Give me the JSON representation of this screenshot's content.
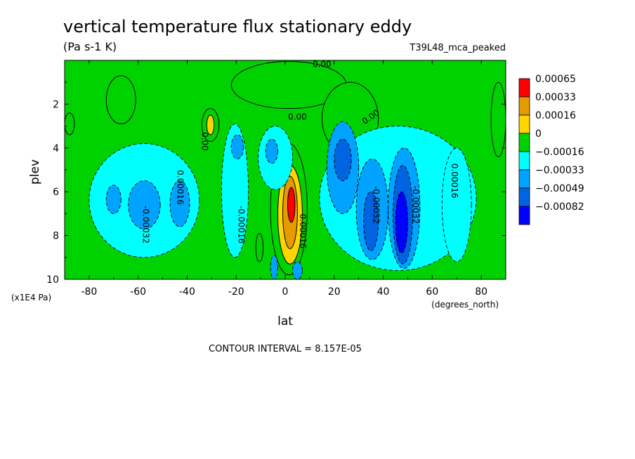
{
  "chart_data": {
    "type": "heatmap",
    "title": "vertical temperature flux stationary eddy",
    "units": "(Pa s-1 K)",
    "dataset_label": "T39L48_mca_peaked",
    "xlabel": "lat",
    "x_units": "(degrees_north)",
    "ylabel": "plev",
    "y_units": "(x1E4 Pa)",
    "xlim": [
      -90,
      90
    ],
    "ylim": [
      10,
      0
    ],
    "x_ticks": [
      -80,
      -60,
      -40,
      -20,
      0,
      20,
      40,
      60,
      80
    ],
    "y_ticks": [
      2,
      4,
      6,
      8,
      10
    ],
    "contour_interval_text": "CONTOUR INTERVAL = 8.157E-05",
    "legend": {
      "levels": [
        "0.00065",
        "0.00033",
        "0.00016",
        "0",
        "−0.00016",
        "−0.00033",
        "−0.00049",
        "−0.00082"
      ],
      "colors": [
        "#ff0000",
        "#e49b00",
        "#ffd500",
        "#00d200",
        "#00ffff",
        "#00a3ff",
        "#0064e0",
        "#0000ff"
      ]
    },
    "background_color": "#00d200",
    "contour_labels": [
      {
        "text": "0.00",
        "lat": 15,
        "plev": 0.2,
        "rot": 0
      },
      {
        "text": "0.00",
        "lat": 5,
        "plev": 2.6,
        "rot": 0
      },
      {
        "text": "0.00",
        "lat": 35,
        "plev": 2.6,
        "rot": -35
      },
      {
        "text": "0.00",
        "lat": -33,
        "plev": 3.7,
        "rot": 90
      },
      {
        "text": "0.00016",
        "lat": -43,
        "plev": 5.8,
        "rot": 90
      },
      {
        "text": "-0.00032",
        "lat": -57,
        "plev": 7.5,
        "rot": 90
      },
      {
        "text": "-0.00016",
        "lat": -18,
        "plev": 7.5,
        "rot": 90
      },
      {
        "text": "0.00016",
        "lat": 7,
        "plev": 7.8,
        "rot": 90
      },
      {
        "text": "-0.00032",
        "lat": 37,
        "plev": 6.6,
        "rot": 90
      },
      {
        "text": "-0.00032",
        "lat": 53,
        "plev": 6.6,
        "rot": 90
      },
      {
        "text": "0.00016",
        "lat": 69,
        "plev": 5.5,
        "rot": 90
      }
    ],
    "features": [
      {
        "name": "yellow-top-center",
        "level": "0",
        "lon0": -22,
        "lon1": 25,
        "p0": 0.05,
        "p1": 2.2
      },
      {
        "name": "yellow-tongue-north",
        "level": "0",
        "lon0": 15,
        "lon1": 38,
        "p0": 1.0,
        "p1": 4.3
      },
      {
        "name": "yellow-left-blob",
        "level": "0",
        "lon0": -73,
        "lon1": -61,
        "p0": 0.7,
        "p1": 2.9
      },
      {
        "name": "yellow-left-edge",
        "level": "0",
        "lon0": -90,
        "lon1": -86,
        "p0": 2.4,
        "p1": 3.4
      },
      {
        "name": "yellow-right-edge",
        "level": "0",
        "lon0": 84,
        "lon1": 90,
        "p0": 1.0,
        "p1": 4.4
      },
      {
        "name": "yellow-south-45",
        "level": "0",
        "lon0": -34,
        "lon1": -27,
        "p0": 2.2,
        "p1": 3.7
      },
      {
        "name": "orange-south-30",
        "level": "0.00016",
        "lon0": -32,
        "lon1": -29,
        "p0": 2.5,
        "p1": 3.4
      },
      {
        "name": "yellow-equator-band",
        "level": "0",
        "lon0": -6,
        "lon1": 9,
        "p0": 3.8,
        "p1": 9.8
      },
      {
        "name": "orange-equator",
        "level": "0.00016",
        "lon0": -3,
        "lon1": 7,
        "p0": 4.8,
        "p1": 9.3
      },
      {
        "name": "dark-orange-equator",
        "level": "0.00033",
        "lon0": -1,
        "lon1": 5,
        "p0": 5.3,
        "p1": 8.6
      },
      {
        "name": "red-equator",
        "level": "0.00065",
        "lon0": 1,
        "lon1": 4,
        "p0": 5.8,
        "p1": 7.4
      },
      {
        "name": "yellow-small-minus10",
        "level": "0",
        "lon0": -12,
        "lon1": -9,
        "p0": 7.9,
        "p1": 9.2
      },
      {
        "name": "cyan-south-big",
        "level": "−0.00016",
        "lon0": -80,
        "lon1": -35,
        "p0": 3.8,
        "p1": 9.0
      },
      {
        "name": "blue-south-big",
        "level": "−0.00033",
        "lon0": -64,
        "lon1": -51,
        "p0": 5.5,
        "p1": 7.7
      },
      {
        "name": "blue-south-small",
        "level": "−0.00033",
        "lon0": -73,
        "lon1": -67,
        "p0": 5.7,
        "p1": 7.0
      },
      {
        "name": "blue-south-40",
        "level": "−0.00033",
        "lon0": -47,
        "lon1": -39,
        "p0": 5.5,
        "p1": 7.6
      },
      {
        "name": "cyan-south-20",
        "level": "−0.00016",
        "lon0": -26,
        "lon1": -15,
        "p0": 2.9,
        "p1": 9.0
      },
      {
        "name": "cyan-south-5",
        "level": "−0.00016",
        "lon0": -11,
        "lon1": 3,
        "p0": 3.0,
        "p1": 5.9
      },
      {
        "name": "blue-south-20",
        "level": "−0.00033",
        "lon0": -22,
        "lon1": -17,
        "p0": 3.4,
        "p1": 4.5
      },
      {
        "name": "blue-south-5",
        "level": "−0.00033",
        "lon0": -8,
        "lon1": -3,
        "p0": 3.6,
        "p1": 4.7
      },
      {
        "name": "cyan-north-big",
        "level": "−0.00016",
        "lon0": 14,
        "lon1": 78,
        "p0": 3.0,
        "p1": 9.6
      },
      {
        "name": "blue-north-20",
        "level": "−0.00033",
        "lon0": 17,
        "lon1": 30,
        "p0": 2.8,
        "p1": 7.0
      },
      {
        "name": "dark-blue-north-20",
        "level": "−0.00049",
        "lon0": 20,
        "lon1": 27,
        "p0": 3.6,
        "p1": 5.5
      },
      {
        "name": "blue-north-35",
        "level": "−0.00033",
        "lon0": 29,
        "lon1": 42,
        "p0": 4.5,
        "p1": 9.1
      },
      {
        "name": "dark-blue-north-35",
        "level": "−0.00049",
        "lon0": 32,
        "lon1": 38,
        "p0": 6.0,
        "p1": 8.7
      },
      {
        "name": "blue-north-48",
        "level": "−0.00033",
        "lon0": 42,
        "lon1": 55,
        "p0": 4.0,
        "p1": 9.5
      },
      {
        "name": "dark-blue-north-48",
        "level": "−0.00049",
        "lon0": 44,
        "lon1": 52,
        "p0": 4.8,
        "p1": 9.3
      },
      {
        "name": "deep-blue-north-48",
        "level": "−0.00082",
        "lon0": 45,
        "lon1": 50,
        "p0": 6.0,
        "p1": 8.8
      },
      {
        "name": "cyan-north-70",
        "level": "−0.00016",
        "lon0": 64,
        "lon1": 76,
        "p0": 4.0,
        "p1": 9.2
      },
      {
        "name": "blue-small-minus5-bottom",
        "level": "−0.00033",
        "lon0": -6,
        "lon1": -3,
        "p0": 8.9,
        "p1": 10.0
      },
      {
        "name": "blue-small-5-bottom",
        "level": "−0.00033",
        "lon0": 3,
        "lon1": 7,
        "p0": 9.2,
        "p1": 10.0
      }
    ]
  }
}
